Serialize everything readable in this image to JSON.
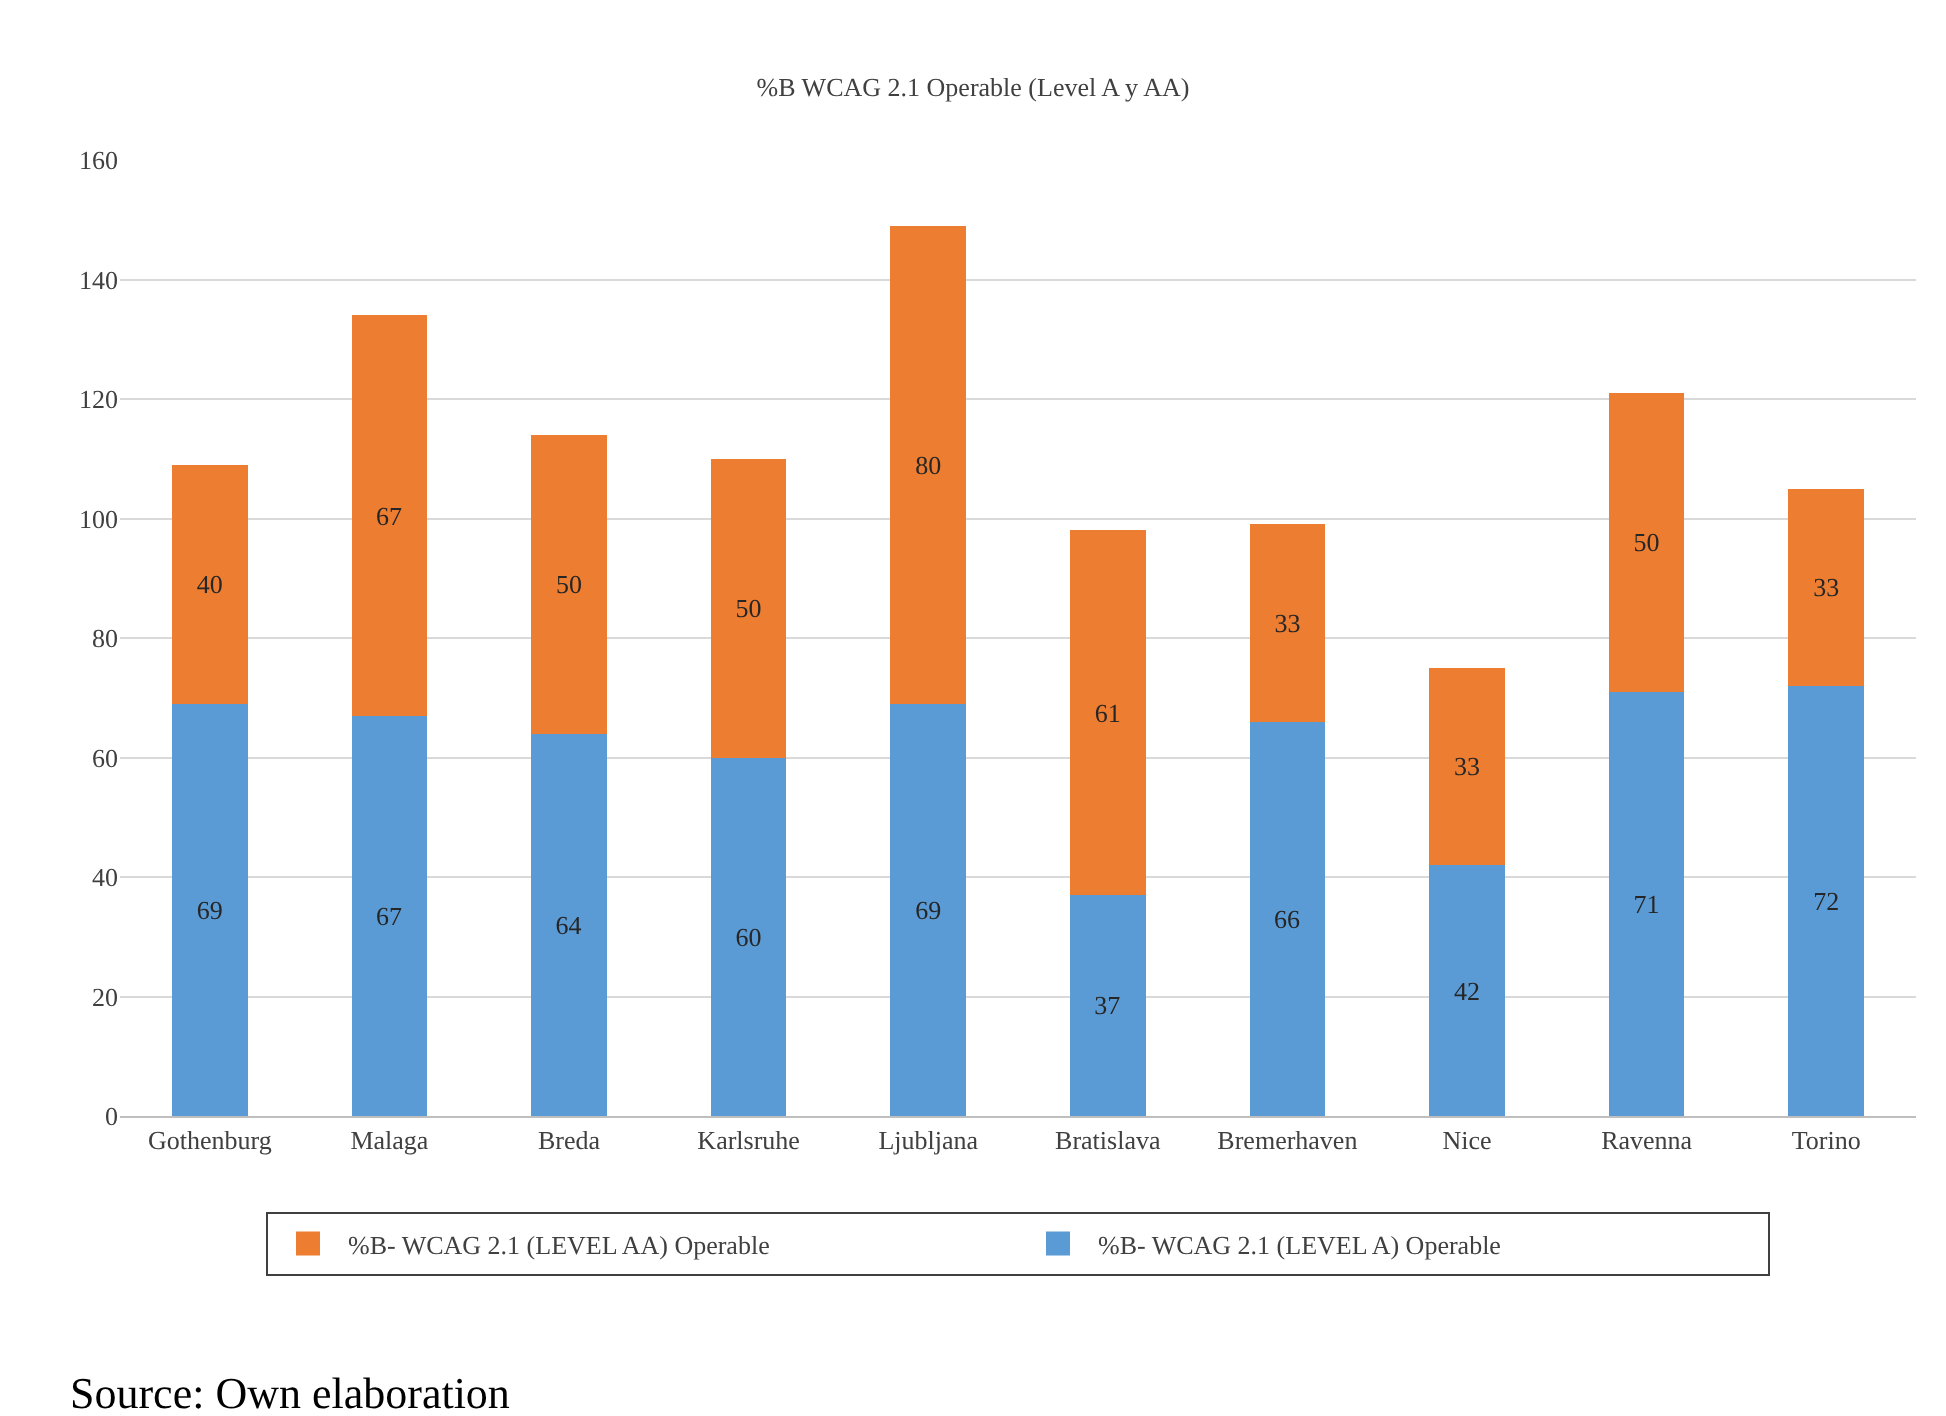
{
  "chart_data": {
    "type": "bar",
    "title": "%B WCAG 2.1 Operable (Level A y AA)",
    "stacked": true,
    "data_labels": true,
    "grid": "y",
    "legend": "bottom",
    "categories": [
      "Gothenburg",
      "Malaga",
      "Breda",
      "Karlsruhe",
      "Ljubljana",
      "Bratislava",
      "Bremerhaven",
      "Nice",
      "Ravenna",
      "Torino"
    ],
    "series": [
      {
        "name": "%B- WCAG 2.1 (LEVEL A) Operable",
        "color": "#5b9bd5",
        "values": [
          69,
          67,
          64,
          60,
          69,
          37,
          66,
          42,
          71,
          72
        ]
      },
      {
        "name": "%B- WCAG 2.1 (LEVEL AA) Operable",
        "color": "#ed7d31",
        "values": [
          40,
          67,
          50,
          50,
          80,
          61,
          33,
          33,
          50,
          33
        ]
      }
    ],
    "ylim": [
      0,
      160
    ],
    "yticks": [
      0,
      20,
      40,
      60,
      80,
      100,
      120,
      140,
      160
    ],
    "annotations": [
      "Source: Own elaboration"
    ]
  }
}
